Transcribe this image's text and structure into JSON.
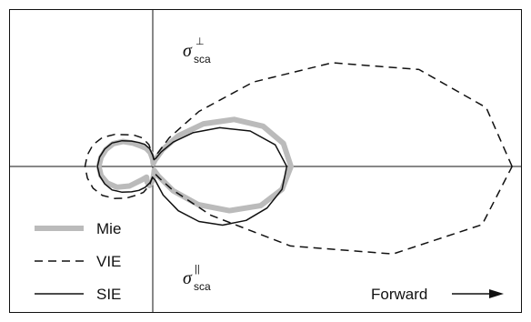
{
  "chart_data": {
    "type": "line",
    "coordinate_system": "polar",
    "title": "",
    "xlabel": "",
    "ylabel": "",
    "grid": false,
    "legend_placement": "bottom-left",
    "annotations": {
      "upper_half": {
        "symbol": "σ",
        "sup": "⊥",
        "sub": "sca"
      },
      "lower_half": {
        "symbol": "σ",
        "sup": "||",
        "sub": "sca"
      },
      "direction_label": "Forward"
    },
    "colors": {
      "Mie": "#bbbbbb",
      "VIE": "#111111",
      "SIE": "#111111"
    },
    "series": [
      {
        "name": "Mie",
        "style": "thick-gray",
        "angle_deg": [
          0,
          10,
          20,
          30,
          40,
          50,
          60,
          70,
          80,
          90,
          100,
          110,
          120,
          130,
          140,
          150,
          160,
          170,
          180
        ],
        "perpendicular": [
          1.0,
          0.96,
          0.85,
          0.68,
          0.48,
          0.29,
          0.14,
          0.05,
          0.02,
          0.05,
          0.1,
          0.14,
          0.17,
          0.22,
          0.28,
          0.33,
          0.36,
          0.38,
          0.39
        ],
        "parallel": [
          1.0,
          0.95,
          0.83,
          0.64,
          0.43,
          0.23,
          0.08,
          0.03,
          0.05,
          0.1,
          0.14,
          0.12,
          0.09,
          0.13,
          0.22,
          0.3,
          0.35,
          0.38,
          0.39
        ]
      },
      {
        "name": "VIE",
        "style": "dashed",
        "angle_deg": [
          0,
          10,
          20,
          30,
          40,
          50,
          60,
          70,
          80,
          90,
          100,
          110,
          120,
          130,
          140,
          150,
          160,
          170,
          180
        ],
        "perpendicular": [
          2.6,
          2.45,
          2.05,
          1.5,
          0.95,
          0.52,
          0.24,
          0.1,
          0.05,
          0.08,
          0.16,
          0.22,
          0.26,
          0.3,
          0.36,
          0.42,
          0.46,
          0.48,
          0.49
        ],
        "parallel": [
          2.6,
          2.42,
          1.85,
          1.15,
          0.55,
          0.22,
          0.1,
          0.06,
          0.05,
          0.07,
          0.14,
          0.2,
          0.24,
          0.3,
          0.36,
          0.42,
          0.46,
          0.48,
          0.49
        ]
      },
      {
        "name": "SIE",
        "style": "solid",
        "angle_deg": [
          0,
          10,
          20,
          30,
          40,
          50,
          60,
          70,
          80,
          90,
          100,
          110,
          120,
          130,
          140,
          150,
          160,
          170,
          180
        ],
        "perpendicular": [
          0.97,
          0.9,
          0.75,
          0.56,
          0.38,
          0.23,
          0.12,
          0.06,
          0.05,
          0.08,
          0.13,
          0.17,
          0.2,
          0.24,
          0.29,
          0.34,
          0.37,
          0.39,
          0.4
        ],
        "parallel": [
          0.97,
          0.95,
          0.88,
          0.78,
          0.66,
          0.52,
          0.37,
          0.22,
          0.1,
          0.08,
          0.12,
          0.16,
          0.2,
          0.24,
          0.29,
          0.34,
          0.37,
          0.39,
          0.4
        ]
      }
    ]
  }
}
